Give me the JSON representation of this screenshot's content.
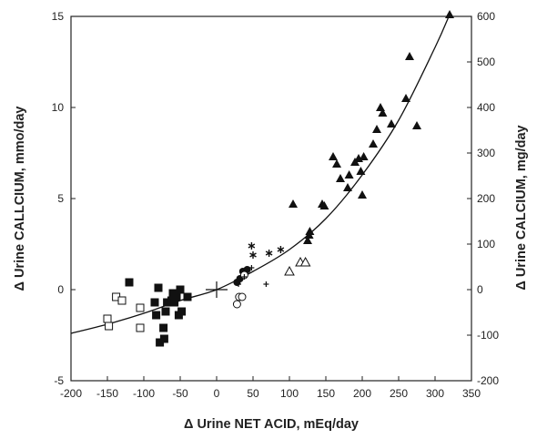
{
  "chart_data": {
    "type": "scatter",
    "title": "",
    "xlabel": "Δ Urine NET ACID, mEq/day",
    "ylabel": "Δ Urine CALLCIUM, mmo/day",
    "ylabel_right": "Δ Urine CALCIUM, mg/day",
    "xlim": [
      -200,
      350
    ],
    "ylim": [
      -5,
      15
    ],
    "ylim_right": [
      -200,
      600
    ],
    "x_ticks": [
      "-200",
      "-150",
      "-100",
      "-50",
      "0",
      "50",
      "100",
      "150",
      "200",
      "250",
      "300",
      "350"
    ],
    "y_ticks": [
      "-5",
      "0",
      "5",
      "10",
      "15"
    ],
    "y_ticks_right": [
      "-200",
      "-100",
      "0",
      "100",
      "200",
      "300",
      "400",
      "500",
      "600"
    ],
    "grid": false,
    "legend": "none",
    "series": [
      {
        "marker": "filled-triangle",
        "points": [
          [
            105,
            4.7
          ],
          [
            125,
            2.7
          ],
          [
            127,
            3.0
          ],
          [
            128,
            3.2
          ],
          [
            145,
            4.7
          ],
          [
            148,
            4.6
          ],
          [
            160,
            7.3
          ],
          [
            165,
            6.9
          ],
          [
            170,
            6.1
          ],
          [
            180,
            5.6
          ],
          [
            182,
            6.3
          ],
          [
            190,
            7.0
          ],
          [
            195,
            7.2
          ],
          [
            198,
            6.5
          ],
          [
            200,
            5.2
          ],
          [
            202,
            7.3
          ],
          [
            215,
            8.0
          ],
          [
            220,
            8.8
          ],
          [
            225,
            10.0
          ],
          [
            228,
            9.7
          ],
          [
            240,
            9.1
          ],
          [
            260,
            10.5
          ],
          [
            265,
            12.8
          ],
          [
            275,
            9.0
          ],
          [
            320,
            15.1
          ]
        ]
      },
      {
        "marker": "open-triangle",
        "points": [
          [
            100,
            1.0
          ],
          [
            115,
            1.5
          ],
          [
            122,
            1.5
          ]
        ]
      },
      {
        "marker": "filled-square",
        "points": [
          [
            -120,
            0.4
          ],
          [
            -85,
            -0.7
          ],
          [
            -83,
            -1.4
          ],
          [
            -80,
            0.1
          ],
          [
            -78,
            -2.9
          ],
          [
            -73,
            -2.1
          ],
          [
            -72,
            -2.7
          ],
          [
            -70,
            -1.2
          ],
          [
            -68,
            -0.7
          ],
          [
            -62,
            -0.6
          ],
          [
            -60,
            -0.2
          ],
          [
            -58,
            -0.7
          ],
          [
            -55,
            -0.4
          ],
          [
            -52,
            -1.4
          ],
          [
            -50,
            0.0
          ],
          [
            -48,
            -1.2
          ],
          [
            -40,
            -0.4
          ]
        ]
      },
      {
        "marker": "open-square",
        "points": [
          [
            -150,
            -1.6
          ],
          [
            -148,
            -2.0
          ],
          [
            -138,
            -0.4
          ],
          [
            -130,
            -0.6
          ],
          [
            -105,
            -1.0
          ],
          [
            -105,
            -2.1
          ]
        ]
      },
      {
        "marker": "filled-circle",
        "points": [
          [
            28,
            0.4
          ],
          [
            32,
            0.6
          ],
          [
            36,
            1.0
          ],
          [
            42,
            1.1
          ]
        ]
      },
      {
        "marker": "open-circle",
        "points": [
          [
            28,
            -0.8
          ],
          [
            31,
            -0.4
          ],
          [
            35,
            -0.4
          ],
          [
            38,
            0.8
          ]
        ]
      },
      {
        "marker": "asterisk",
        "points": [
          [
            48,
            2.4
          ],
          [
            50,
            1.9
          ],
          [
            72,
            2.0
          ],
          [
            88,
            2.2
          ]
        ]
      },
      {
        "marker": "small-cross",
        "points": [
          [
            30,
            0.3
          ],
          [
            38,
            0.7
          ],
          [
            48,
            1.2
          ],
          [
            68,
            0.3
          ]
        ]
      },
      {
        "marker": "large-cross",
        "points": [
          [
            0,
            0.0
          ]
        ]
      }
    ],
    "fit_curve": {
      "style": "solid-dashed",
      "points": [
        [
          -200,
          -2.4
        ],
        [
          -150,
          -1.9
        ],
        [
          -100,
          -1.3
        ],
        [
          -50,
          -0.6
        ],
        [
          0,
          0.0
        ],
        [
          50,
          1.0
        ],
        [
          100,
          2.2
        ],
        [
          150,
          3.9
        ],
        [
          200,
          6.3
        ],
        [
          250,
          9.3
        ],
        [
          300,
          13.3
        ],
        [
          320,
          15.1
        ]
      ]
    }
  }
}
